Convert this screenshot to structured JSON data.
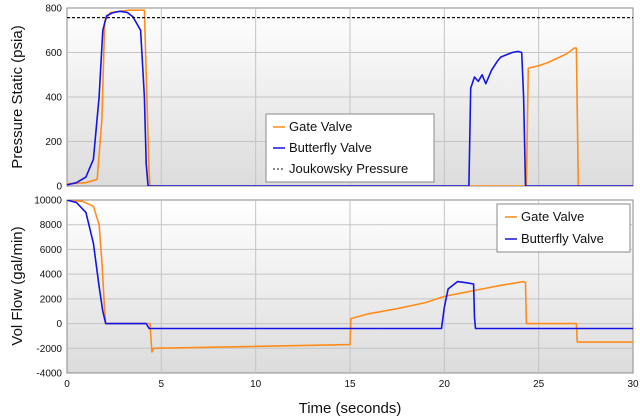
{
  "chart_data": [
    {
      "type": "line",
      "ylabel": "Pressure Static (psia)",
      "xlim": [
        0,
        30
      ],
      "ylim": [
        0,
        800
      ],
      "xticks": [
        0,
        5,
        10,
        15,
        20,
        25,
        30
      ],
      "yticks": [
        0,
        200,
        400,
        600,
        800
      ],
      "grid": true,
      "legend_position": "center",
      "colors": {
        "Gate Valve": "#ff8c1a",
        "Butterfly Valve": "#1414e6",
        "Joukowsky Pressure": "#111111"
      },
      "series": [
        {
          "name": "Gate Valve",
          "x": [
            0,
            1.0,
            1.6,
            1.85,
            2.0,
            2.3,
            2.8,
            3.3,
            3.7,
            4.1,
            4.2,
            4.35,
            4.4,
            24.35,
            24.45,
            25.0,
            25.5,
            26.0,
            26.5,
            26.9,
            27.0,
            27.1,
            30
          ],
          "y": [
            10,
            15,
            30,
            300,
            740,
            780,
            785,
            790,
            790,
            790,
            500,
            60,
            0,
            0,
            530,
            540,
            555,
            575,
            595,
            620,
            620,
            0,
            0
          ]
        },
        {
          "name": "Butterfly Valve",
          "x": [
            0,
            0.5,
            1.0,
            1.4,
            1.7,
            1.9,
            2.1,
            2.4,
            2.8,
            3.2,
            3.5,
            3.9,
            4.1,
            4.2,
            4.3,
            21.3,
            21.4,
            21.6,
            21.8,
            22.0,
            22.2,
            22.5,
            22.8,
            23.0,
            23.3,
            23.6,
            23.9,
            24.1,
            24.2,
            24.3,
            30
          ],
          "y": [
            5,
            15,
            40,
            120,
            400,
            700,
            765,
            778,
            785,
            780,
            760,
            700,
            400,
            100,
            0,
            0,
            440,
            490,
            470,
            500,
            460,
            520,
            560,
            580,
            590,
            600,
            605,
            600,
            400,
            0,
            0
          ]
        },
        {
          "name": "Joukowsky Pressure",
          "x": [
            0,
            30
          ],
          "y": [
            757,
            757
          ]
        }
      ]
    },
    {
      "type": "line",
      "xlabel": "Time (seconds)",
      "ylabel": "Vol Flow (gal/min)",
      "xlim": [
        0,
        30
      ],
      "ylim": [
        -4000,
        10000
      ],
      "xticks": [
        0,
        5,
        10,
        15,
        20,
        25,
        30
      ],
      "yticks": [
        -4000,
        -2000,
        0,
        2000,
        4000,
        6000,
        8000,
        10000
      ],
      "grid": true,
      "legend_position": "top-right",
      "colors": {
        "Gate Valve": "#ff8c1a",
        "Butterfly Valve": "#1414e6"
      },
      "series": [
        {
          "name": "Gate Valve",
          "x": [
            0,
            0.8,
            1.4,
            1.7,
            1.85,
            2.0,
            2.05,
            4.4,
            4.5,
            4.6,
            15.0,
            15.05,
            16.0,
            17.5,
            19.0,
            20.0,
            21.0,
            22.0,
            23.0,
            24.2,
            24.3,
            24.35,
            27.0,
            27.05,
            30
          ],
          "y": [
            9950,
            9900,
            9500,
            8000,
            5000,
            1000,
            0,
            0,
            -2300,
            -2000,
            -1700,
            400,
            800,
            1200,
            1700,
            2200,
            2500,
            2800,
            3100,
            3400,
            3300,
            0,
            0,
            -1500,
            -1500
          ]
        },
        {
          "name": "Butterfly Valve",
          "x": [
            0,
            0.5,
            1.0,
            1.4,
            1.7,
            1.9,
            2.05,
            2.2,
            4.2,
            4.35,
            19.85,
            20.0,
            20.2,
            20.7,
            21.2,
            21.55,
            21.6,
            21.65,
            30
          ],
          "y": [
            10000,
            9800,
            9000,
            6500,
            3000,
            1000,
            0,
            0,
            0,
            -400,
            -400,
            1300,
            2800,
            3400,
            3300,
            3200,
            500,
            -400,
            -400
          ]
        }
      ]
    }
  ]
}
